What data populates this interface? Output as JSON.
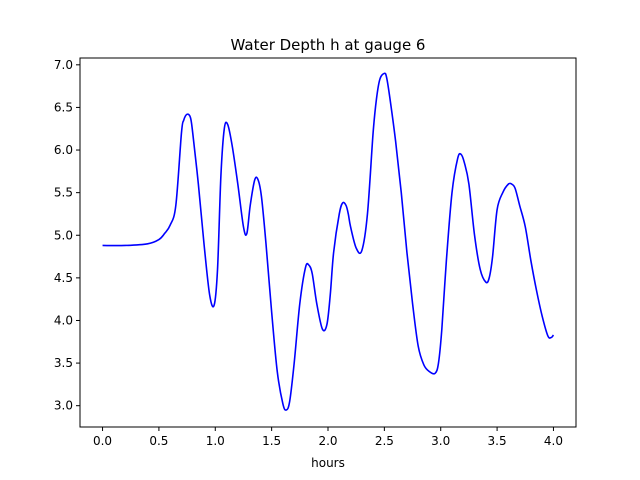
{
  "chart_data": {
    "type": "line",
    "title": "Water Depth h at gauge 6",
    "xlabel": "hours",
    "ylabel": "",
    "xlim": [
      -0.2,
      4.2
    ],
    "ylim": [
      2.75,
      7.08
    ],
    "xticks": [
      "0.0",
      "0.5",
      "1.0",
      "1.5",
      "2.0",
      "2.5",
      "3.0",
      "3.5",
      "4.0"
    ],
    "yticks": [
      "3.0",
      "3.5",
      "4.0",
      "4.5",
      "5.0",
      "5.5",
      "6.0",
      "6.5",
      "7.0"
    ],
    "grid": false,
    "legend": "none",
    "series": [
      {
        "color": "#0000ff",
        "x": [
          0.0,
          0.2,
          0.4,
          0.5,
          0.55,
          0.6,
          0.65,
          0.7,
          0.72,
          0.75,
          0.78,
          0.8,
          0.85,
          0.9,
          0.95,
          0.99,
          1.02,
          1.05,
          1.08,
          1.11,
          1.15,
          1.2,
          1.25,
          1.28,
          1.31,
          1.35,
          1.38,
          1.41,
          1.45,
          1.5,
          1.55,
          1.6,
          1.63,
          1.66,
          1.7,
          1.75,
          1.8,
          1.83,
          1.86,
          1.9,
          1.95,
          1.99,
          2.02,
          2.05,
          2.1,
          2.13,
          2.16,
          2.18,
          2.2,
          2.25,
          2.3,
          2.35,
          2.4,
          2.43,
          2.46,
          2.5,
          2.52,
          2.55,
          2.6,
          2.65,
          2.7,
          2.75,
          2.8,
          2.85,
          2.9,
          2.95,
          2.98,
          3.01,
          3.05,
          3.1,
          3.15,
          3.18,
          3.21,
          3.25,
          3.3,
          3.35,
          3.4,
          3.43,
          3.46,
          3.5,
          3.55,
          3.6,
          3.63,
          3.66,
          3.7,
          3.75,
          3.8,
          3.85,
          3.9,
          3.95,
          3.98,
          4.0
        ],
        "y": [
          4.88,
          4.88,
          4.9,
          4.95,
          5.02,
          5.12,
          5.35,
          6.2,
          6.35,
          6.42,
          6.38,
          6.2,
          5.6,
          4.9,
          4.3,
          4.18,
          4.6,
          5.7,
          6.25,
          6.3,
          6.05,
          5.6,
          5.1,
          5.02,
          5.35,
          5.65,
          5.65,
          5.45,
          4.9,
          4.1,
          3.4,
          3.02,
          2.95,
          3.05,
          3.5,
          4.2,
          4.62,
          4.65,
          4.55,
          4.2,
          3.9,
          3.95,
          4.3,
          4.8,
          5.25,
          5.38,
          5.35,
          5.25,
          5.1,
          4.85,
          4.82,
          5.25,
          6.2,
          6.6,
          6.83,
          6.9,
          6.85,
          6.6,
          6.1,
          5.5,
          4.8,
          4.2,
          3.7,
          3.48,
          3.4,
          3.38,
          3.5,
          3.9,
          4.7,
          5.5,
          5.9,
          5.95,
          5.85,
          5.6,
          5.0,
          4.6,
          4.45,
          4.5,
          4.75,
          5.3,
          5.5,
          5.6,
          5.6,
          5.55,
          5.35,
          5.1,
          4.7,
          4.35,
          4.05,
          3.82,
          3.8,
          3.83
        ]
      }
    ]
  }
}
